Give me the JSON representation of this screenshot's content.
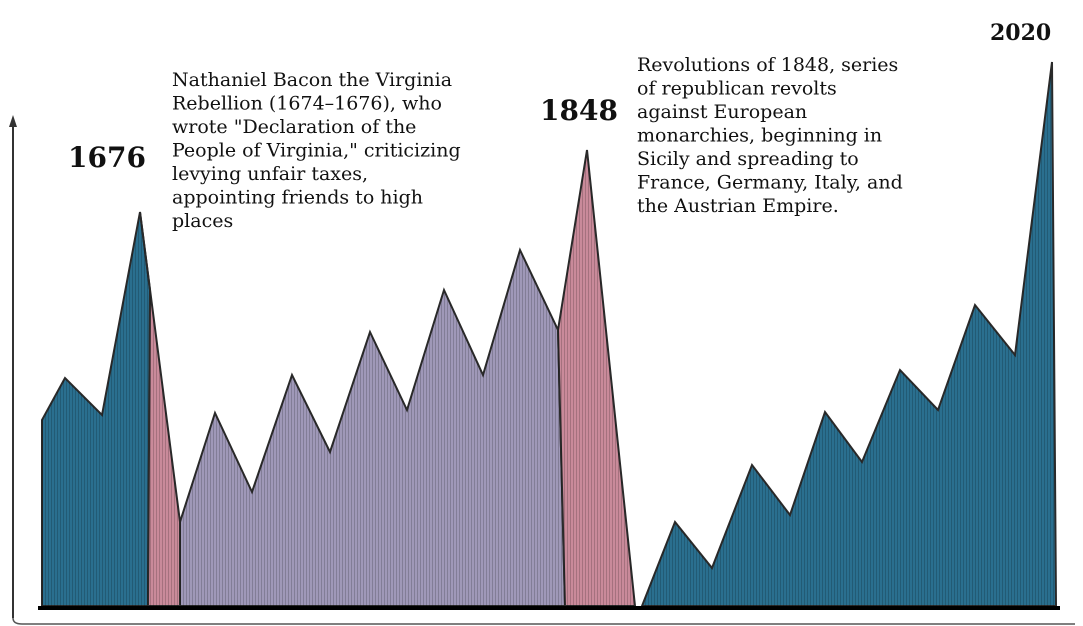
{
  "labels": {
    "year_left": "1676",
    "year_middle": "1848",
    "year_right": "2020"
  },
  "annotations": {
    "bacon": [
      "Nathaniel Bacon the Virginia",
      "Rebellion (1674–1676), who",
      "wrote \"Declaration of the",
      "People of Virginia,\" criticizing",
      "levying unfair taxes,",
      "appointing friends to high",
      "places"
    ],
    "revolutions": [
      "Revolutions of 1848, series",
      "of republican revolts",
      "against European",
      "monarchies, beginning in",
      "Sicily and spreading to",
      "France, Germany, Italy, and",
      "the Austrian Empire."
    ]
  }
}
